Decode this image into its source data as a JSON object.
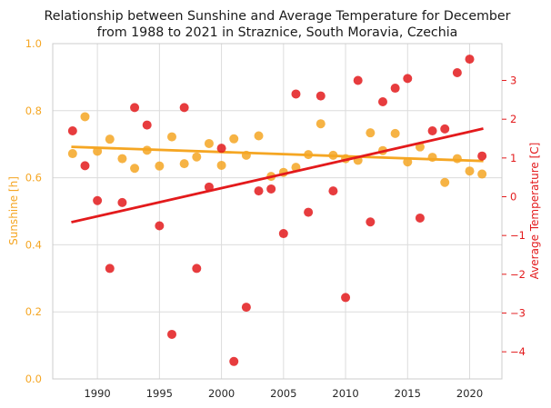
{
  "chart_data": {
    "type": "scatter",
    "title_line1": "Relationship between Sunshine and Average Temperature for December",
    "title_line2": "from 1988 to 2021 in Straznice, South Moravia, Czechia",
    "grid": true,
    "x_axis": {
      "range": [
        1986.4,
        2022.6
      ],
      "ticks": [
        1990,
        1995,
        2000,
        2005,
        2010,
        2015,
        2020
      ]
    },
    "y_left": {
      "label": "Sunshine [h]",
      "range": [
        0,
        1.0
      ],
      "ticks": [
        "0.0",
        "0.2",
        "0.4",
        "0.6",
        "0.8",
        "1.0"
      ],
      "color": "#f5a623"
    },
    "y_right": {
      "label": "Average Temperature [C]",
      "range": [
        -4.7,
        3.95
      ],
      "ticks": [
        "−4",
        "−3",
        "−2",
        "−1",
        "0",
        "1",
        "2",
        "3"
      ],
      "tick_values": [
        -4,
        -3,
        -2,
        -1,
        0,
        1,
        2,
        3
      ],
      "color": "#e31a1c"
    },
    "series": [
      {
        "axis": "left",
        "color": "#f5a623",
        "x": [
          1988,
          1989,
          1990,
          1991,
          1992,
          1993,
          1994,
          1995,
          1996,
          1997,
          1998,
          1999,
          2000,
          2001,
          2002,
          2003,
          2004,
          2005,
          2006,
          2007,
          2008,
          2009,
          2010,
          2011,
          2012,
          2013,
          2014,
          2015,
          2016,
          2017,
          2018,
          2019,
          2020,
          2021
        ],
        "y": [
          0.672,
          0.782,
          0.679,
          0.715,
          0.657,
          0.628,
          0.682,
          0.635,
          0.722,
          0.642,
          0.662,
          0.702,
          0.637,
          0.716,
          0.667,
          0.725,
          0.604,
          0.616,
          0.631,
          0.669,
          0.761,
          0.667,
          0.657,
          0.652,
          0.734,
          0.681,
          0.732,
          0.647,
          0.692,
          0.661,
          0.586,
          0.657,
          0.62,
          0.611
        ],
        "trend": [
          0.692,
          0.65
        ]
      },
      {
        "axis": "right",
        "color": "#e31a1c",
        "x": [
          1988,
          1989,
          1990,
          1991,
          1992,
          1993,
          1994,
          1995,
          1996,
          1997,
          1998,
          1999,
          2000,
          2001,
          2002,
          2003,
          2004,
          2005,
          2006,
          2007,
          2008,
          2009,
          2010,
          2011,
          2012,
          2013,
          2014,
          2015,
          2016,
          2017,
          2018,
          2019,
          2020,
          2021
        ],
        "y": [
          1.7,
          0.8,
          -0.1,
          -1.85,
          -0.15,
          2.3,
          1.85,
          -0.75,
          -3.55,
          2.3,
          -1.85,
          0.25,
          1.25,
          -4.25,
          -2.85,
          0.15,
          0.2,
          -0.95,
          2.65,
          -0.4,
          2.6,
          0.15,
          -2.6,
          3.0,
          -0.65,
          2.45,
          2.8,
          3.05,
          -0.55,
          1.7,
          1.75,
          3.2,
          3.55,
          1.05
        ],
        "trend": [
          -0.65,
          1.75
        ]
      }
    ],
    "trend_x": [
      1988,
      2021
    ]
  }
}
